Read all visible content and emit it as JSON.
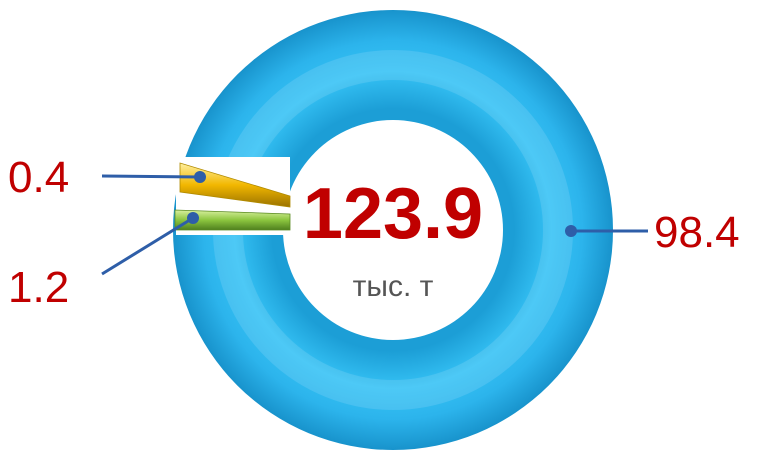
{
  "chart_data": {
    "type": "pie",
    "variant": "donut",
    "slices": [
      {
        "label": "98.4",
        "value": 98.4,
        "color": "#29b6ec"
      },
      {
        "label": "0.4",
        "value": 0.4,
        "color": "#f2b700"
      },
      {
        "label": "1.2",
        "value": 1.2,
        "color": "#8cc63f"
      }
    ],
    "center": {
      "value": "123.9",
      "unit": "тыс. т"
    },
    "leader_color": "#2e5ea8",
    "label_color": "#c00000"
  }
}
